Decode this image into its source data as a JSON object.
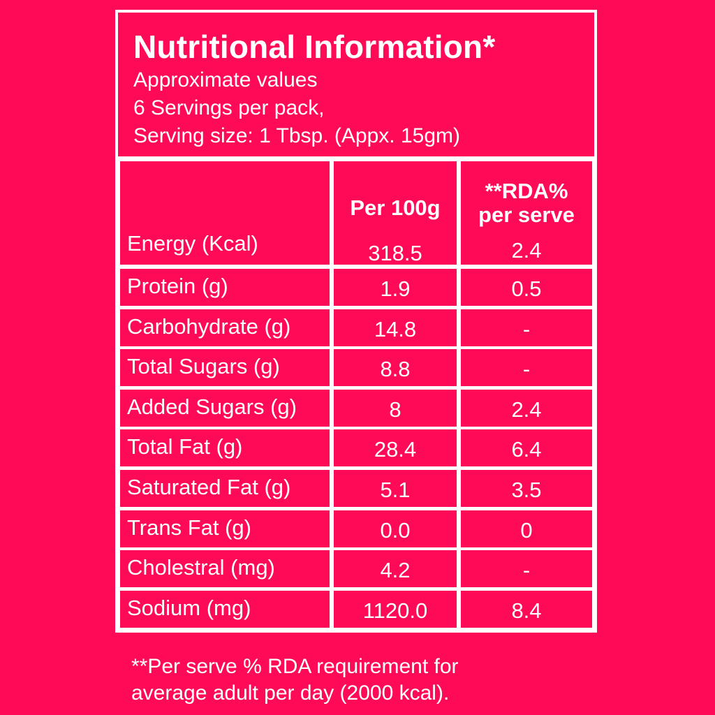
{
  "header": {
    "title": "Nutritional Information*",
    "line1": "Approximate values",
    "line2": "6 Servings per pack,",
    "line3": "Serving size: 1 Tbsp. (Appx. 15gm)"
  },
  "columns": {
    "per100": "Per 100g",
    "rda_line1": "**RDA%",
    "rda_line2": "per serve"
  },
  "rows": [
    {
      "nutrient": "Energy (Kcal)",
      "per100": "318.5",
      "rda": "2.4"
    },
    {
      "nutrient": "Protein (g)",
      "per100": "1.9",
      "rda": "0.5"
    },
    {
      "nutrient": "Carbohydrate (g)",
      "per100": "14.8",
      "rda": "-"
    },
    {
      "nutrient": "Total Sugars (g)",
      "per100": "8.8",
      "rda": "-"
    },
    {
      "nutrient": "Added Sugars (g)",
      "per100": "8",
      "rda": "2.4"
    },
    {
      "nutrient": "Total Fat (g)",
      "per100": "28.4",
      "rda": "6.4"
    },
    {
      "nutrient": "Saturated Fat (g)",
      "per100": "5.1",
      "rda": "3.5"
    },
    {
      "nutrient": "Trans Fat (g)",
      "per100": "0.0",
      "rda": "0"
    },
    {
      "nutrient": "Cholestral (mg)",
      "per100": "4.2",
      "rda": "-"
    },
    {
      "nutrient": "Sodium (mg)",
      "per100": "1120.0",
      "rda": "8.4"
    }
  ],
  "footnote": {
    "line1": "**Per serve % RDA requirement for",
    "line2": "average adult per day (2000 kcal)."
  },
  "colors": {
    "background": "#ff0a57",
    "foreground": "#ffffff"
  }
}
